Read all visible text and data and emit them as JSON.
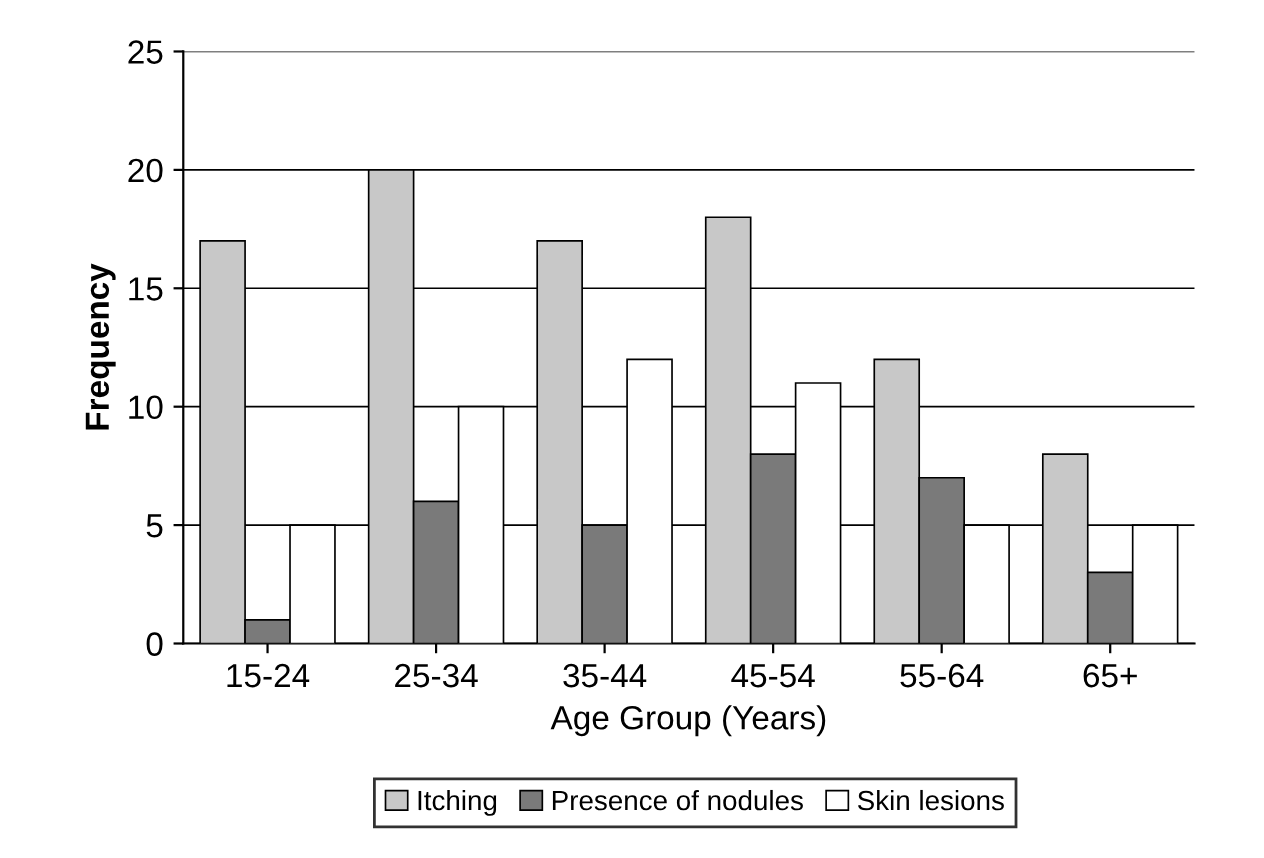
{
  "chart_data": {
    "type": "bar",
    "xlabel": "Age Group (Years)",
    "ylabel": "Frequency",
    "categories": [
      "15-24",
      "25-34",
      "35-44",
      "45-54",
      "55-64",
      "65+"
    ],
    "series": [
      {
        "name": "Itching",
        "color": "#c8c8c8",
        "values": [
          17,
          20,
          17,
          18,
          12,
          8
        ]
      },
      {
        "name": "Presence of nodules",
        "color": "#7a7a7a",
        "values": [
          1,
          6,
          5,
          8,
          7,
          3
        ]
      },
      {
        "name": "Skin lesions",
        "color": "#ffffff",
        "values": [
          5,
          10,
          12,
          11,
          5,
          5
        ]
      }
    ],
    "ylim": [
      0,
      25
    ],
    "yticks": [
      0,
      5,
      10,
      15,
      20,
      25
    ],
    "grid": "y",
    "legend": "bottom"
  }
}
